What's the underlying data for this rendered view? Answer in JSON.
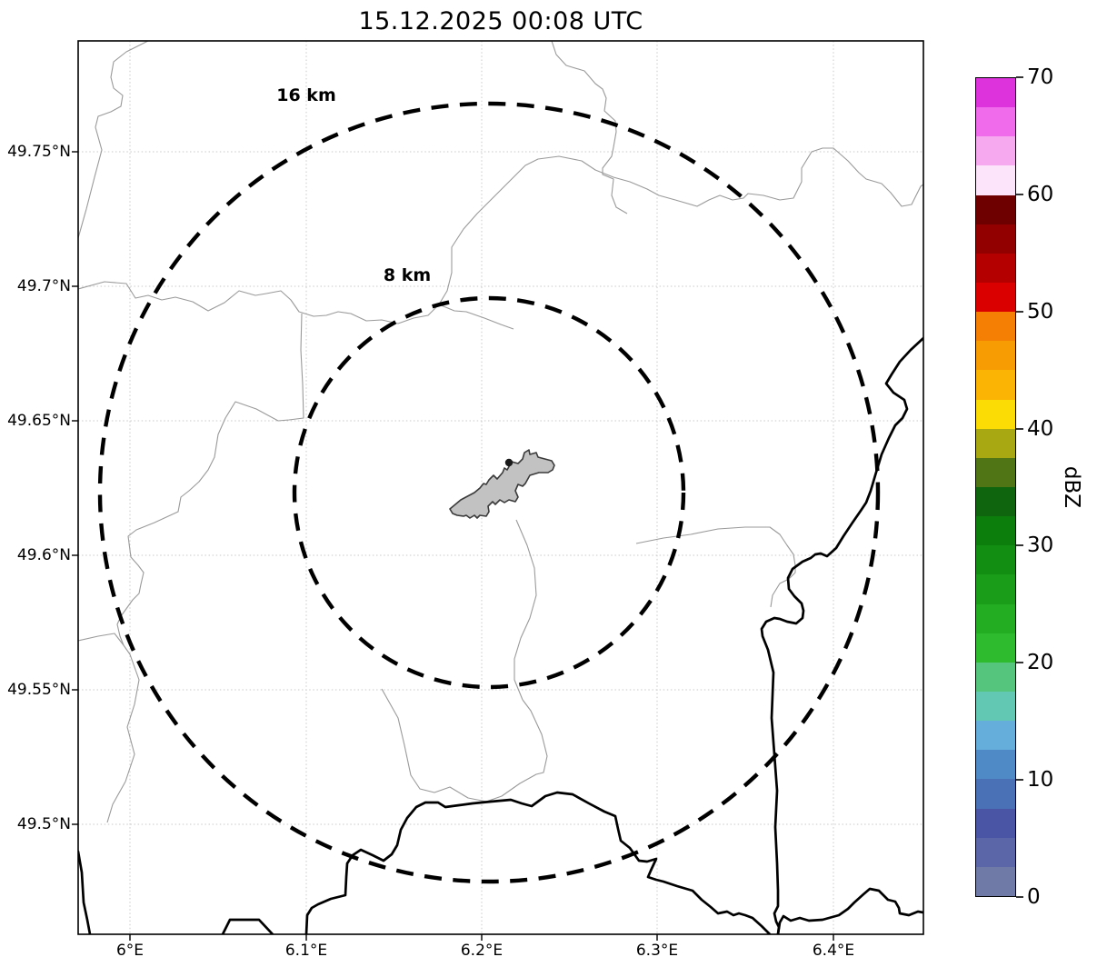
{
  "title": "15.12.2025 00:08 UTC",
  "axes": {
    "x_ticks": [
      "6°E",
      "6.1°E",
      "6.2°E",
      "6.3°E",
      "6.4°E"
    ],
    "y_ticks": [
      "49.75°N",
      "49.7°N",
      "49.65°N",
      "49.6°N",
      "49.55°N",
      "49.5°N"
    ]
  },
  "range_rings": [
    {
      "label": "16 km"
    },
    {
      "label": "8 km"
    }
  ],
  "colorbar": {
    "label": "dBZ",
    "ticks": [
      "70",
      "60",
      "50",
      "40",
      "30",
      "20",
      "10",
      "0"
    ],
    "min": 0,
    "max": 70,
    "colors_bottom_to_top": [
      "#6f7ba6",
      "#5a66a8",
      "#4b55a6",
      "#4a70b5",
      "#4f89c6",
      "#65aedb",
      "#62c7b3",
      "#55c57e",
      "#2ebc2e",
      "#23ad23",
      "#1a9e1a",
      "#128e12",
      "#0c7e0c",
      "#0e650e",
      "#4f7515",
      "#a8a812",
      "#fbdc04",
      "#fbb404",
      "#f89c04",
      "#f57f04",
      "#db0000",
      "#b50000",
      "#930000",
      "#6f0000",
      "#fce4fa",
      "#f7a9f0",
      "#ef6bec",
      "#dd33dd"
    ]
  },
  "map": {
    "line_colors": {
      "country_border": "#000000",
      "municipal_boundary": "#9a9a9a",
      "grid": "#c9c9c9"
    },
    "airport_fill": "#c2c2c2"
  }
}
